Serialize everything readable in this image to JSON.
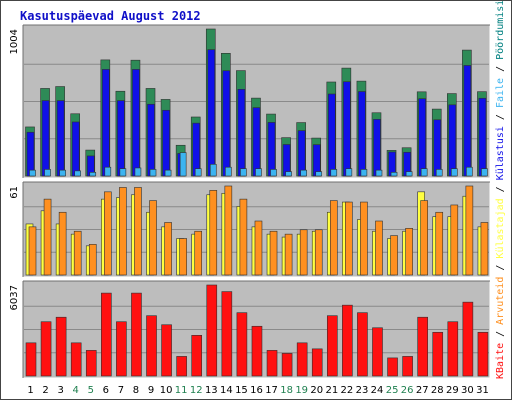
{
  "chart_data": {
    "type": "bar",
    "title": "Kasutuspäevad August 2012",
    "categories": [
      "1",
      "2",
      "3",
      "4",
      "5",
      "6",
      "7",
      "8",
      "9",
      "10",
      "11",
      "12",
      "13",
      "14",
      "15",
      "16",
      "17",
      "18",
      "19",
      "20",
      "21",
      "22",
      "23",
      "24",
      "25",
      "26",
      "27",
      "28",
      "29",
      "30",
      "31"
    ],
    "weekend_days": [
      "4",
      "5",
      "11",
      "12",
      "18",
      "19",
      "25",
      "26"
    ],
    "panels": [
      {
        "ymax_label": "1004",
        "ylim": [
          0,
          1004
        ],
        "series": [
          {
            "name": "Külastajad",
            "color": "#2e8b57",
            "values": [
              335,
              598,
              611,
              425,
              177,
              793,
              579,
              791,
              598,
              523,
              210,
              403,
              1004,
              838,
              720,
              532,
              423,
              262,
              365,
              259,
              642,
              737,
              648,
              432,
              175,
              193,
              575,
              457,
              563,
              860,
              576
            ]
          },
          {
            "name": "Külastusi",
            "color": "#1010e8",
            "values": [
              299,
              515,
              515,
              369,
              137,
              728,
              515,
              728,
              490,
              449,
              154,
              361,
              863,
              719,
              592,
              467,
              366,
              215,
              310,
              214,
              560,
              644,
              577,
              387,
              164,
              162,
              528,
              384,
              486,
              755,
              531
            ]
          },
          {
            "name": "Faile",
            "color": "#3cb4f0",
            "values": [
              40,
              45,
              40,
              35,
              25,
              60,
              50,
              55,
              45,
              40,
              160,
              50,
              80,
              60,
              50,
              50,
              45,
              30,
              40,
              30,
              45,
              50,
              45,
              40,
              25,
              30,
              50,
              45,
              50,
              60,
              50
            ]
          },
          {
            "name": "Pöördumisi",
            "color": "#00a0a0",
            "values": [
              40,
              45,
              40,
              35,
              25,
              60,
              50,
              55,
              45,
              40,
              160,
              50,
              80,
              60,
              50,
              50,
              45,
              30,
              40,
              30,
              45,
              50,
              45,
              40,
              25,
              30,
              50,
              45,
              50,
              60,
              50
            ]
          }
        ]
      },
      {
        "ymax_label": "61",
        "ylim": [
          0,
          61
        ],
        "series": [
          {
            "name": "Külastajad",
            "color": "#ffff40",
            "values": [
              35,
              44,
              35,
              28,
              20,
              52,
              53,
              55,
              43,
              33,
              25,
              28,
              55,
              56,
              47,
              33,
              28,
              26,
              28,
              30,
              43,
              50,
              38,
              30,
              25,
              30,
              57,
              40,
              40,
              54,
              33
            ]
          },
          {
            "name": "Arvuteid",
            "color": "#ff9020",
            "values": [
              33,
              52,
              43,
              30,
              21,
              57,
              60,
              60,
              51,
              36,
              25,
              30,
              58,
              61,
              52,
              37,
              30,
              28,
              31,
              31,
              51,
              50,
              50,
              37,
              27,
              32,
              51,
              43,
              48,
              61,
              36
            ]
          }
        ]
      },
      {
        "ymax_label": "6037",
        "ylim": [
          0,
          6037
        ],
        "series": [
          {
            "name": "KBaite",
            "color": "#ff1010",
            "values": [
              2200,
              3600,
              3900,
              2200,
              1700,
              5500,
              3600,
              5500,
              4000,
              3400,
              1300,
              2700,
              6037,
              5600,
              4200,
              3300,
              1700,
              1500,
              2200,
              1800,
              4000,
              4700,
              4200,
              3200,
              1200,
              1300,
              3900,
              2900,
              3600,
              4900,
              2900
            ]
          }
        ]
      }
    ],
    "legend_right": [
      {
        "text": "Pöördumisi",
        "color": "#008080"
      },
      {
        "text": "Faile",
        "color": "#3cb4f0"
      },
      {
        "text": "Külastusi",
        "color": "#1010e8"
      },
      {
        "text": "Külastajad",
        "color": "#ffff40"
      },
      {
        "text": "Arvuteid",
        "color": "#ff9020"
      },
      {
        "text": "KBaite",
        "color": "#ff1010"
      }
    ],
    "legend_sep": "/",
    "colors": {
      "panel_bg": "#bdbdbd",
      "grid": "#8a8a8a",
      "weekday_label": "#000000",
      "weekend_label": "#208050"
    }
  }
}
